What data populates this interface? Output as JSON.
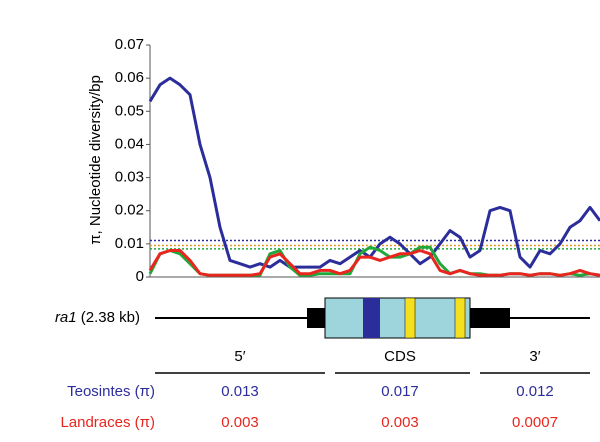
{
  "chart_data": {
    "type": "line",
    "y_label": "π, Nucleotide diversity/bp",
    "ylim": [
      0,
      0.07
    ],
    "yticks": [
      0,
      0.01,
      0.02,
      0.03,
      0.04,
      0.05,
      0.06,
      0.07
    ],
    "series": [
      {
        "color": "#2b2e9a",
        "values": [
          0.053,
          0.058,
          0.06,
          0.058,
          0.055,
          0.04,
          0.03,
          0.015,
          0.005,
          0.004,
          0.003,
          0.004,
          0.003,
          0.005,
          0.003,
          0.003,
          0.003,
          0.003,
          0.005,
          0.004,
          0.006,
          0.008,
          0.006,
          0.01,
          0.012,
          0.01,
          0.007,
          0.004,
          0.006,
          0.01,
          0.014,
          0.012,
          0.006,
          0.008,
          0.02,
          0.021,
          0.02,
          0.006,
          0.003,
          0.008,
          0.007,
          0.01,
          0.015,
          0.017,
          0.021,
          0.017
        ]
      },
      {
        "color": "#22a83a",
        "values": [
          0.001,
          0.007,
          0.008,
          0.007,
          0.004,
          0.001,
          0.0005,
          0.0005,
          0.0005,
          0.0005,
          0.0005,
          0.0005,
          0.007,
          0.008,
          0.003,
          0.0005,
          0.0005,
          0.001,
          0.001,
          0.001,
          0.001,
          0.007,
          0.009,
          0.008,
          0.006,
          0.006,
          0.007,
          0.009,
          0.009,
          0.004,
          0.001,
          0.002,
          0.001,
          0.001,
          0.0005,
          0.0005,
          0.001,
          0.001,
          0.0005,
          0.001,
          0.001,
          0.0005,
          0.001,
          0.0005,
          0.001,
          0.0005
        ]
      },
      {
        "color": "#e8251e",
        "values": [
          0.002,
          0.007,
          0.008,
          0.008,
          0.005,
          0.001,
          0.0005,
          0.0005,
          0.0005,
          0.0005,
          0.0005,
          0.001,
          0.006,
          0.007,
          0.004,
          0.001,
          0.001,
          0.002,
          0.002,
          0.001,
          0.002,
          0.006,
          0.006,
          0.005,
          0.006,
          0.007,
          0.007,
          0.008,
          0.007,
          0.002,
          0.001,
          0.002,
          0.001,
          0.0005,
          0.0005,
          0.0005,
          0.001,
          0.001,
          0.0005,
          0.001,
          0.001,
          0.0005,
          0.001,
          0.002,
          0.001,
          0.0005
        ]
      }
    ],
    "reference_lines": [
      {
        "value": 0.011,
        "color": "#2b2e9a"
      },
      {
        "value": 0.0095,
        "color": "#e8a020"
      },
      {
        "value": 0.0085,
        "color": "#22a83a"
      }
    ]
  },
  "gene": {
    "name": "ra1",
    "size": "(2.38 kb)"
  },
  "table": {
    "columns": [
      "5′",
      "CDS",
      "3′"
    ],
    "rows": [
      {
        "label": "Teosintes (π)",
        "color": "#2b2e9a",
        "cells": [
          "0.013",
          "0.017",
          "0.012"
        ]
      },
      {
        "label": "Landraces (π)",
        "color": "#e8251e",
        "cells": [
          "0.003",
          "0.003",
          "0.0007"
        ]
      }
    ]
  }
}
